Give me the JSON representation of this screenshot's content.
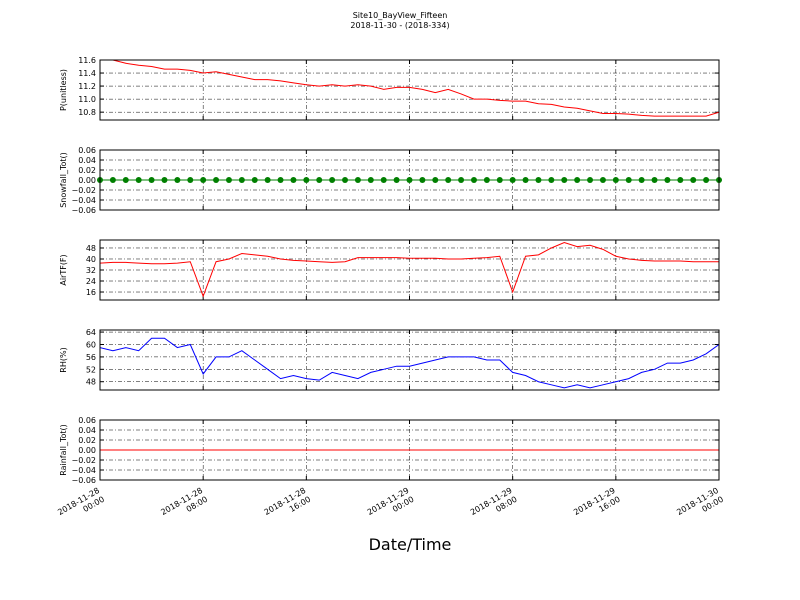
{
  "title": "Site10_BayView_Fifteen",
  "subtitle": "2018-11-30 - (2018-334)",
  "xlabel": "Date/Time",
  "chart_data": [
    {
      "type": "line",
      "ylabel": "P(unitless)",
      "ylim": [
        10.68,
        11.6
      ],
      "yticks": [
        {
          "value": 10.8,
          "label": "10.8"
        },
        {
          "value": 11,
          "label": "11.0"
        },
        11.2,
        11.4,
        11.6
      ],
      "xlim": [
        "2018-11-28 00:00",
        "2018-11-30 00:00"
      ],
      "xticks": [
        "2018-11-28 00:00",
        "2018-11-28 08:00",
        "2018-11-28 16:00",
        "2018-11-29 00:00",
        "2018-11-29 08:00",
        "2018-11-29 16:00",
        "2018-11-30 00:00"
      ],
      "grid": true,
      "x": [
        "2018-11-28 00:00",
        "2018-11-28 01:00",
        "2018-11-28 02:00",
        "2018-11-28 03:00",
        "2018-11-28 04:00",
        "2018-11-28 05:00",
        "2018-11-28 06:00",
        "2018-11-28 07:00",
        "2018-11-28 08:00",
        "2018-11-28 09:00",
        "2018-11-28 10:00",
        "2018-11-28 11:00",
        "2018-11-28 12:00",
        "2018-11-28 13:00",
        "2018-11-28 14:00",
        "2018-11-28 15:00",
        "2018-11-28 16:00",
        "2018-11-28 17:00",
        "2018-11-28 18:00",
        "2018-11-28 19:00",
        "2018-11-28 20:00",
        "2018-11-28 21:00",
        "2018-11-28 22:00",
        "2018-11-28 23:00",
        "2018-11-29 00:00",
        "2018-11-29 01:00",
        "2018-11-29 02:00",
        "2018-11-29 03:00",
        "2018-11-29 04:00",
        "2018-11-29 05:00",
        "2018-11-29 06:00",
        "2018-11-29 07:00",
        "2018-11-29 08:00",
        "2018-11-29 09:00",
        "2018-11-29 10:00",
        "2018-11-29 11:00",
        "2018-11-29 12:00",
        "2018-11-29 13:00",
        "2018-11-29 14:00",
        "2018-11-29 15:00",
        "2018-11-29 16:00",
        "2018-11-29 17:00",
        "2018-11-29 18:00",
        "2018-11-29 19:00",
        "2018-11-29 20:00",
        "2018-11-29 21:00",
        "2018-11-29 22:00",
        "2018-11-29 23:00",
        "2018-11-30 00:00"
      ],
      "series": [
        {
          "color": "#ff0000",
          "values": [
            11.6,
            11.6,
            11.55,
            11.52,
            11.5,
            11.46,
            11.46,
            11.44,
            11.4,
            11.42,
            11.38,
            11.34,
            11.3,
            11.3,
            11.28,
            11.25,
            11.22,
            11.2,
            11.22,
            11.2,
            11.22,
            11.2,
            11.15,
            11.18,
            11.18,
            11.15,
            11.1,
            11.15,
            11.08,
            11.0,
            11.0,
            10.98,
            10.97,
            10.97,
            10.93,
            10.92,
            10.88,
            10.86,
            10.82,
            10.78,
            10.78,
            10.77,
            10.75,
            10.74,
            10.74,
            10.74,
            10.74,
            10.74,
            10.8
          ]
        }
      ]
    },
    {
      "type": "line",
      "ylabel": "Snowfall_Tot()",
      "ylim": [
        -0.06,
        0.06
      ],
      "yticks": [
        {
          "value": -0.06,
          "label": "−0.06"
        },
        {
          "value": -0.04,
          "label": "−0.04"
        },
        {
          "value": -0.02,
          "label": "−0.02"
        },
        {
          "value": 0,
          "label": "0.00"
        },
        0.02,
        0.04,
        0.06
      ],
      "xlim": [
        "2018-11-28 00:00",
        "2018-11-30 00:00"
      ],
      "xticks": [
        "2018-11-28 00:00",
        "2018-11-28 08:00",
        "2018-11-28 16:00",
        "2018-11-29 00:00",
        "2018-11-29 08:00",
        "2018-11-29 16:00",
        "2018-11-30 00:00"
      ],
      "grid": true,
      "markers": true,
      "x": [
        "2018-11-28 00:00",
        "2018-11-28 01:00",
        "2018-11-28 02:00",
        "2018-11-28 03:00",
        "2018-11-28 04:00",
        "2018-11-28 05:00",
        "2018-11-28 06:00",
        "2018-11-28 07:00",
        "2018-11-28 08:00",
        "2018-11-28 09:00",
        "2018-11-28 10:00",
        "2018-11-28 11:00",
        "2018-11-28 12:00",
        "2018-11-28 13:00",
        "2018-11-28 14:00",
        "2018-11-28 15:00",
        "2018-11-28 16:00",
        "2018-11-28 17:00",
        "2018-11-28 18:00",
        "2018-11-28 19:00",
        "2018-11-28 20:00",
        "2018-11-28 21:00",
        "2018-11-28 22:00",
        "2018-11-28 23:00",
        "2018-11-29 00:00",
        "2018-11-29 01:00",
        "2018-11-29 02:00",
        "2018-11-29 03:00",
        "2018-11-29 04:00",
        "2018-11-29 05:00",
        "2018-11-29 06:00",
        "2018-11-29 07:00",
        "2018-11-29 08:00",
        "2018-11-29 09:00",
        "2018-11-29 10:00",
        "2018-11-29 11:00",
        "2018-11-29 12:00",
        "2018-11-29 13:00",
        "2018-11-29 14:00",
        "2018-11-29 15:00",
        "2018-11-29 16:00",
        "2018-11-29 17:00",
        "2018-11-29 18:00",
        "2018-11-29 19:00",
        "2018-11-29 20:00",
        "2018-11-29 21:00",
        "2018-11-29 22:00",
        "2018-11-29 23:00",
        "2018-11-30 00:00"
      ],
      "series": [
        {
          "color": "#007f00",
          "values": [
            0,
            0,
            0,
            0,
            0,
            0,
            0,
            0,
            0,
            0,
            0,
            0,
            0,
            0,
            0,
            0,
            0,
            0,
            0,
            0,
            0,
            0,
            0,
            0,
            0,
            0,
            0,
            0,
            0,
            0,
            0,
            0,
            0,
            0,
            0,
            0,
            0,
            0,
            0,
            0,
            0,
            0,
            0,
            0,
            0,
            0,
            0,
            0,
            0
          ]
        }
      ]
    },
    {
      "type": "line",
      "ylabel": "AirTF(F)",
      "ylim": [
        10.2,
        53.8
      ],
      "yticks": [
        16,
        24,
        32,
        40,
        48
      ],
      "xlim": [
        "2018-11-28 00:00",
        "2018-11-30 00:00"
      ],
      "xticks": [
        "2018-11-28 00:00",
        "2018-11-28 08:00",
        "2018-11-28 16:00",
        "2018-11-29 00:00",
        "2018-11-29 08:00",
        "2018-11-29 16:00",
        "2018-11-30 00:00"
      ],
      "grid": true,
      "x": [
        "2018-11-28 00:00",
        "2018-11-28 01:00",
        "2018-11-28 02:00",
        "2018-11-28 03:00",
        "2018-11-28 04:00",
        "2018-11-28 05:00",
        "2018-11-28 06:00",
        "2018-11-28 07:00",
        "2018-11-28 08:00",
        "2018-11-28 09:00",
        "2018-11-28 10:00",
        "2018-11-28 11:00",
        "2018-11-28 12:00",
        "2018-11-28 13:00",
        "2018-11-28 14:00",
        "2018-11-28 15:00",
        "2018-11-28 16:00",
        "2018-11-28 17:00",
        "2018-11-28 18:00",
        "2018-11-28 19:00",
        "2018-11-28 20:00",
        "2018-11-28 21:00",
        "2018-11-28 22:00",
        "2018-11-28 23:00",
        "2018-11-29 00:00",
        "2018-11-29 01:00",
        "2018-11-29 02:00",
        "2018-11-29 03:00",
        "2018-11-29 04:00",
        "2018-11-29 05:00",
        "2018-11-29 06:00",
        "2018-11-29 07:00",
        "2018-11-29 08:00",
        "2018-11-29 09:00",
        "2018-11-29 10:00",
        "2018-11-29 11:00",
        "2018-11-29 12:00",
        "2018-11-29 13:00",
        "2018-11-29 14:00",
        "2018-11-29 15:00",
        "2018-11-29 16:00",
        "2018-11-29 17:00",
        "2018-11-29 18:00",
        "2018-11-29 19:00",
        "2018-11-29 20:00",
        "2018-11-29 21:00",
        "2018-11-29 22:00",
        "2018-11-29 23:00",
        "2018-11-30 00:00"
      ],
      "series": [
        {
          "color": "#ff0000",
          "values": [
            37,
            37.5,
            37.5,
            37,
            36.5,
            36.5,
            37,
            38,
            13,
            38,
            40,
            44,
            43,
            42,
            40,
            39,
            38.5,
            38,
            37.5,
            38,
            41,
            41,
            41,
            41,
            40.5,
            40.5,
            40.5,
            40,
            40,
            40.5,
            41,
            42,
            16,
            42,
            43,
            48,
            52,
            49,
            50,
            47,
            42,
            40,
            39,
            38.5,
            38.5,
            38.5,
            38,
            38,
            38
          ]
        }
      ]
    },
    {
      "type": "line",
      "ylabel": "RH(%)",
      "ylim": [
        45.33,
        64.67
      ],
      "yticks": [
        48,
        52,
        56,
        60,
        64
      ],
      "xlim": [
        "2018-11-28 00:00",
        "2018-11-30 00:00"
      ],
      "xticks": [
        "2018-11-28 00:00",
        "2018-11-28 08:00",
        "2018-11-28 16:00",
        "2018-11-29 00:00",
        "2018-11-29 08:00",
        "2018-11-29 16:00",
        "2018-11-30 00:00"
      ],
      "grid": true,
      "x": [
        "2018-11-28 00:00",
        "2018-11-28 01:00",
        "2018-11-28 02:00",
        "2018-11-28 03:00",
        "2018-11-28 04:00",
        "2018-11-28 05:00",
        "2018-11-28 06:00",
        "2018-11-28 07:00",
        "2018-11-28 08:00",
        "2018-11-28 09:00",
        "2018-11-28 10:00",
        "2018-11-28 11:00",
        "2018-11-28 12:00",
        "2018-11-28 13:00",
        "2018-11-28 14:00",
        "2018-11-28 15:00",
        "2018-11-28 16:00",
        "2018-11-28 17:00",
        "2018-11-28 18:00",
        "2018-11-28 19:00",
        "2018-11-28 20:00",
        "2018-11-28 21:00",
        "2018-11-28 22:00",
        "2018-11-28 23:00",
        "2018-11-29 00:00",
        "2018-11-29 01:00",
        "2018-11-29 02:00",
        "2018-11-29 03:00",
        "2018-11-29 04:00",
        "2018-11-29 05:00",
        "2018-11-29 06:00",
        "2018-11-29 07:00",
        "2018-11-29 08:00",
        "2018-11-29 09:00",
        "2018-11-29 10:00",
        "2018-11-29 11:00",
        "2018-11-29 12:00",
        "2018-11-29 13:00",
        "2018-11-29 14:00",
        "2018-11-29 15:00",
        "2018-11-29 16:00",
        "2018-11-29 17:00",
        "2018-11-29 18:00",
        "2018-11-29 19:00",
        "2018-11-29 20:00",
        "2018-11-29 21:00",
        "2018-11-29 22:00",
        "2018-11-29 23:00",
        "2018-11-30 00:00"
      ],
      "series": [
        {
          "color": "#0000ff",
          "values": [
            59,
            58,
            59,
            58,
            62,
            62,
            59,
            60,
            50.5,
            56,
            56,
            58,
            55,
            52,
            49,
            50,
            49,
            48.5,
            51,
            50,
            49,
            51,
            52,
            53,
            53,
            54,
            55,
            56,
            56,
            56,
            55,
            55,
            51,
            50,
            48,
            47,
            46,
            47,
            46,
            47,
            48,
            49,
            51,
            52,
            54,
            54,
            55,
            57,
            60
          ]
        }
      ]
    },
    {
      "type": "line",
      "ylabel": "Rainfall_Tot()",
      "ylim": [
        -0.06,
        0.06
      ],
      "yticks": [
        {
          "value": -0.06,
          "label": "−0.06"
        },
        {
          "value": -0.04,
          "label": "−0.04"
        },
        {
          "value": -0.02,
          "label": "−0.02"
        },
        {
          "value": 0,
          "label": "0.00"
        },
        0.02,
        0.04,
        0.06
      ],
      "xlim": [
        "2018-11-28 00:00",
        "2018-11-30 00:00"
      ],
      "xticks": [
        "2018-11-28 00:00",
        "2018-11-28 08:00",
        "2018-11-28 16:00",
        "2018-11-29 00:00",
        "2018-11-29 08:00",
        "2018-11-29 16:00",
        "2018-11-30 00:00"
      ],
      "grid": true,
      "xtick_labels": true,
      "x": [
        "2018-11-28 00:00",
        "2018-11-28 01:00",
        "2018-11-28 02:00",
        "2018-11-28 03:00",
        "2018-11-28 04:00",
        "2018-11-28 05:00",
        "2018-11-28 06:00",
        "2018-11-28 07:00",
        "2018-11-28 08:00",
        "2018-11-28 09:00",
        "2018-11-28 10:00",
        "2018-11-28 11:00",
        "2018-11-28 12:00",
        "2018-11-28 13:00",
        "2018-11-28 14:00",
        "2018-11-28 15:00",
        "2018-11-28 16:00",
        "2018-11-28 17:00",
        "2018-11-28 18:00",
        "2018-11-28 19:00",
        "2018-11-28 20:00",
        "2018-11-28 21:00",
        "2018-11-28 22:00",
        "2018-11-28 23:00",
        "2018-11-29 00:00",
        "2018-11-29 01:00",
        "2018-11-29 02:00",
        "2018-11-29 03:00",
        "2018-11-29 04:00",
        "2018-11-29 05:00",
        "2018-11-29 06:00",
        "2018-11-29 07:00",
        "2018-11-29 08:00",
        "2018-11-29 09:00",
        "2018-11-29 10:00",
        "2018-11-29 11:00",
        "2018-11-29 12:00",
        "2018-11-29 13:00",
        "2018-11-29 14:00",
        "2018-11-29 15:00",
        "2018-11-29 16:00",
        "2018-11-29 17:00",
        "2018-11-29 18:00",
        "2018-11-29 19:00",
        "2018-11-29 20:00",
        "2018-11-29 21:00",
        "2018-11-29 22:00",
        "2018-11-29 23:00",
        "2018-11-30 00:00"
      ],
      "series": [
        {
          "color": "#ff0000",
          "values": [
            0,
            0,
            0,
            0,
            0,
            0,
            0,
            0,
            0,
            0,
            0,
            0,
            0,
            0,
            0,
            0,
            0,
            0,
            0,
            0,
            0,
            0,
            0,
            0,
            0,
            0,
            0,
            0,
            0,
            0,
            0,
            0,
            0,
            0,
            0,
            0,
            0,
            0,
            0,
            0,
            0,
            0,
            0,
            0,
            0,
            0,
            0,
            0,
            0
          ]
        }
      ]
    }
  ]
}
